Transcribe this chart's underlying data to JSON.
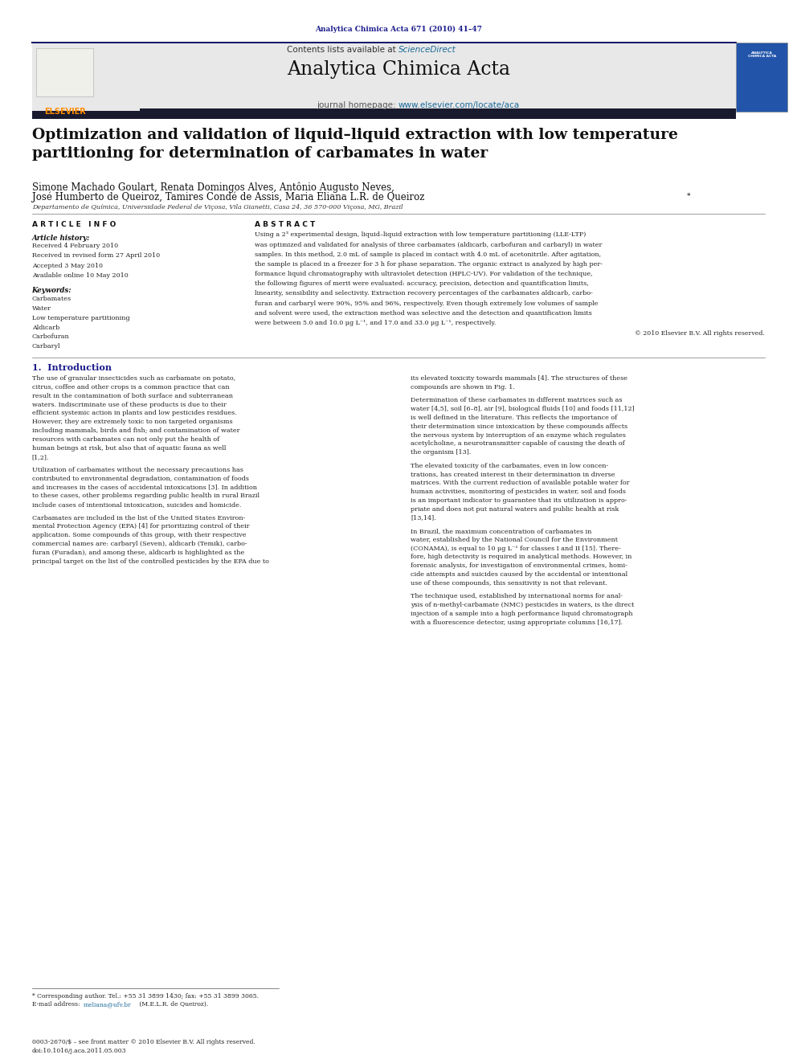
{
  "page_width": 9.92,
  "page_height": 13.23,
  "bg_color": "#ffffff",
  "header_journal_ref": "Analytica Chimica Acta 671 (2010) 41–47",
  "header_ref_color": "#1a1a8c",
  "journal_name": "Analytica Chimica Acta",
  "contents_text": "Contents lists available at ",
  "science_direct": "ScienceDirect",
  "homepage_text": "journal homepage: ",
  "homepage_url": "www.elsevier.com/locate/aca",
  "elsevier_color": "#FF8C00",
  "link_color": "#1a6b9a",
  "header_bg": "#e8e8e8",
  "dark_bar_color": "#1a1a2e",
  "article_title": "Optimization and validation of liquid–liquid extraction with low temperature\npartitioning for determination of carbamates in water",
  "authors_line1": "Simone Machado Goulart, Renata Domingos Alves, Antônio Augusto Neves,",
  "authors_line2": "José Humberto de Queiroz, Tamires Condé de Assis, Maria Eliana L.R. de Queiroz",
  "affiliation": "Departamento de Química, Universidade Federal de Viçosa, Vila Gianetti, Casa 24, 36 570-000 Viçosa, MG, Brazil",
  "article_info_title": "A R T I C L E   I N F O",
  "article_history_title": "Article history:",
  "received": "Received 4 February 2010",
  "received_revised": "Received in revised form 27 April 2010",
  "accepted": "Accepted 3 May 2010",
  "available": "Available online 10 May 2010",
  "keywords_title": "Keywords:",
  "keywords": [
    "Carbamates",
    "Water",
    "Low temperature partitioning",
    "Aldicarb",
    "Carbofuran",
    "Carbaryl"
  ],
  "abstract_title": "A B S T R A C T",
  "abstract_lines": [
    "Using a 2³ experimental design, liquid–liquid extraction with low temperature partitioning (LLE-LTP)",
    "was optimized and validated for analysis of three carbamates (aldicarb, carbofuran and carbaryl) in water",
    "samples. In this method, 2.0 mL of sample is placed in contact with 4.0 mL of acetonitrile. After agitation,",
    "the sample is placed in a freezer for 3 h for phase separation. The organic extract is analyzed by high per-",
    "formance liquid chromatography with ultraviolet detection (HPLC-UV). For validation of the technique,",
    "the following figures of merit were evaluated: accuracy, precision, detection and quantification limits,",
    "linearity, sensibility and selectivity. Extraction recovery percentages of the carbamates aldicarb, carbo-",
    "furan and carbaryl were 90%, 95% and 96%, respectively. Even though extremely low volumes of sample",
    "and solvent were used, the extraction method was selective and the detection and quantification limits",
    "were between 5.0 and 10.0 μg L⁻¹, and 17.0 and 33.0 μg L⁻¹, respectively."
  ],
  "copyright_text": "© 2010 Elsevier B.V. All rights reserved.",
  "section1_title": "1.  Introduction",
  "intro_col1_lines": [
    "The use of granular insecticides such as carbamate on potato,",
    "citrus, coffee and other crops is a common practice that can",
    "result in the contamination of both surface and subterranean",
    "waters. Indiscriminate use of these products is due to their",
    "efficient systemic action in plants and low pesticides residues.",
    "However, they are extremely toxic to non targeted organisms",
    "including mammals, birds and fish; and contamination of water",
    "resources with carbamates can not only put the health of",
    "human beings at risk, but also that of aquatic fauna as well",
    "[1,2].",
    "",
    "Utilization of carbamates without the necessary precautions has",
    "contributed to environmental degradation, contamination of foods",
    "and increases in the cases of accidental intoxications [3]. In addition",
    "to these cases, other problems regarding public health in rural Brazil",
    "include cases of intentional intoxication, suicides and homicide.",
    "",
    "Carbamates are included in the list of the United States Environ-",
    "mental Protection Agency (EPA) [4] for prioritizing control of their",
    "application. Some compounds of this group, with their respective",
    "commercial names are: carbaryl (Seven), aldicarb (Temik), carbo-",
    "furan (Furadan), and among these, aldicarb is highlighted as the",
    "principal target on the list of the controlled pesticides by the EPA due to"
  ],
  "intro_col2_lines": [
    "its elevated toxicity towards mammals [4]. The structures of these",
    "compounds are shown in Fig. 1.",
    "",
    "Determination of these carbamates in different matrices such as",
    "water [4,5], soil [6–8], air [9], biological fluids [10] and foods [11,12]",
    "is well defined in the literature. This reflects the importance of",
    "their determination since intoxication by these compounds affects",
    "the nervous system by interruption of an enzyme which regulates",
    "acetylcholine, a neurotransmitter capable of causing the death of",
    "the organism [13].",
    "",
    "The elevated toxicity of the carbamates, even in low concen-",
    "trations, has created interest in their determination in diverse",
    "matrices. With the current reduction of available potable water for",
    "human activities, monitoring of pesticides in water, soil and foods",
    "is an important indicator to guarantee that its utilization is appro-",
    "priate and does not put natural waters and public health at risk",
    "[13,14].",
    "",
    "In Brazil, the maximum concentration of carbamates in",
    "water, established by the National Council for the Environment",
    "(CONAMA), is equal to 10 μg L⁻¹ for classes I and II [15]. There-",
    "fore, high detectivity is required in analytical methods. However, in",
    "forensic analysis, for investigation of environmental crimes, homi-",
    "cide attempts and suicides caused by the accidental or intentional",
    "use of these compounds, this sensitivity is not that relevant.",
    "",
    "The technique used, established by international norms for anal-",
    "ysis of n-methyl-carbamate (NMC) pesticides in waters, is the direct",
    "injection of a sample into a high performance liquid chromatograph",
    "with a fluorescence detector, using appropriate columns [16,17]."
  ],
  "footnote_star": "* Corresponding author. Tel.: +55 31 3899 1430; fax: +55 31 3899 3065.",
  "footnote_email_prefix": "E-mail address: ",
  "footnote_email_link": "meliana@ufv.br",
  "footnote_email_suffix": " (M.E.L.R. de Queiroz).",
  "bottom_line1": "0003-2670/$ – see front matter © 2010 Elsevier B.V. All rights reserved.",
  "bottom_line2": "doi:10.1016/j.aca.2011.05.003"
}
